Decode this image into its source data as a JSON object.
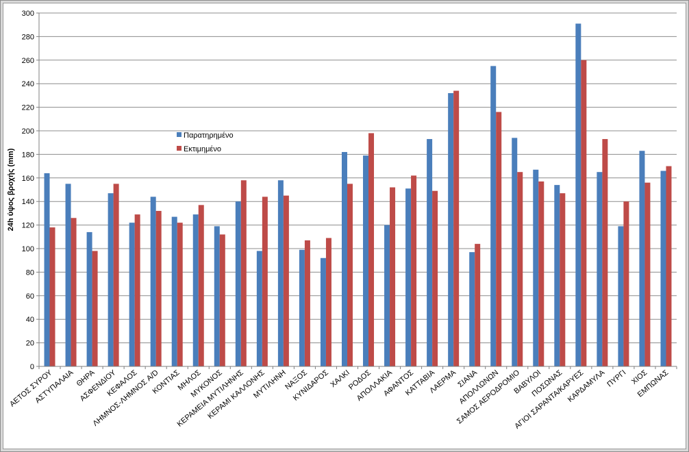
{
  "chart_data": {
    "type": "bar",
    "title": "",
    "xlabel": "",
    "ylabel": "24h ύψος βροχής (mm)",
    "ylim": [
      0,
      300
    ],
    "ytick_step": 20,
    "grid": true,
    "legend_position": "upper-middle",
    "categories": [
      "ΑΕΤΟΣ ΣΥΡΟΥ",
      "ΑΣΤΥΠΑΛΑΙΑ",
      "ΘΗΡΑ",
      "ΑΣΦΕΝΔΙΟΥ",
      "ΚΕΦΑΛΟΣ",
      "ΛΗΜΝΟΣ-ΛΗΜΝΟΣ A/D",
      "ΚΟΝΤΙΑΣ",
      "ΜΗΛΟΣ",
      "ΜΥΚΟΝΟΣ",
      "ΚΕΡΑΜΕΙΑ ΜΥΤΙΛΗΝΗΣ",
      "ΚΕΡΑΜΙ ΚΑΛΛΟΝΗΣ",
      "ΜΥΤΙΛΗΝΗ",
      "ΝΑΞΟΣ",
      "ΚΥΝΙΔΑΡΟΣ",
      "ΧΑΛΚΙ",
      "ΡΟΔΟΣ",
      "ΑΠΟΛΛΑΚΙΑ",
      "ΑΦΑΝΤΟΣ",
      "ΚΑΤΤΑΒΙΑ",
      "ΛΑΕΡΜΑ",
      "ΣΙΑΝΑ",
      "ΑΠΟΛΛΩΝΩΝ",
      "ΣΑΜΟΣ ΑΕΡΟΔΡΟΜΙΟ",
      "ΒΑΒΥΛΟΙ",
      "ΠΟΣΩΝΑΣ",
      "ΑΓΙΟΙ ΣΑΡΑΝΤΑ/ΚΑΡΥΕΣ",
      "ΚΑΡΔΑΜΥΛΑ",
      "ΠΥΡΓΙ",
      "ΧΙΟΣ",
      "ΕΜΠΩΝΑΣ"
    ],
    "series": [
      {
        "name": "Παρατηρημένο",
        "color": "#4a7ebb",
        "values": [
          164,
          155,
          114,
          147,
          122,
          144,
          127,
          129,
          119,
          140,
          98,
          158,
          99,
          92,
          182,
          179,
          120,
          151,
          193,
          232,
          97,
          255,
          194,
          167,
          154,
          291,
          165,
          119,
          183,
          166
        ]
      },
      {
        "name": "Εκτιμημένο",
        "color": "#be4b48",
        "values": [
          118,
          126,
          98,
          155,
          129,
          132,
          122,
          137,
          112,
          158,
          144,
          145,
          107,
          109,
          155,
          198,
          152,
          162,
          149,
          234,
          104,
          216,
          165,
          157,
          147,
          260,
          193,
          140,
          156,
          170
        ]
      }
    ]
  }
}
